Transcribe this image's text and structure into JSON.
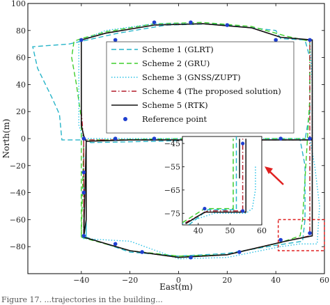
{
  "caption": "Figure 17. ...trajectories in the building...",
  "chart_data": {
    "type": "line",
    "xlabel": "East(m)",
    "ylabel": "North(m)",
    "xlim": [
      -62,
      60
    ],
    "ylim": [
      -100,
      100
    ],
    "xticks": [
      -40,
      -20,
      0,
      20,
      40,
      60
    ],
    "yticks": [
      -80,
      -60,
      -40,
      -20,
      0,
      20,
      40,
      60,
      80,
      100
    ],
    "legend_position": "upper-center",
    "series": [
      {
        "name": "Scheme 1 (GLRT)",
        "color": "#26b4c8",
        "dash": "dashed",
        "points": [
          [
            -38,
            -73
          ],
          [
            -38,
            -2
          ],
          [
            -36,
            -3
          ],
          [
            -10,
            -2
          ],
          [
            10,
            -1
          ],
          [
            50,
            -1
          ],
          [
            52,
            -20
          ],
          [
            52,
            -60
          ],
          [
            51,
            -76
          ],
          [
            40,
            -79
          ],
          [
            20,
            -85
          ],
          [
            0,
            -87
          ],
          [
            -20,
            -84
          ],
          [
            -38,
            -73
          ],
          [
            -38,
            -1
          ],
          [
            -48,
            -1
          ],
          [
            -49,
            18
          ],
          [
            -52,
            30
          ],
          [
            -58,
            52
          ],
          [
            -60,
            68
          ],
          [
            -45,
            70
          ],
          [
            -40,
            72
          ],
          [
            -25,
            78
          ],
          [
            -5,
            84
          ],
          [
            15,
            85
          ],
          [
            30,
            82
          ],
          [
            40,
            80
          ],
          [
            42,
            74
          ],
          [
            52,
            73
          ],
          [
            54,
            60
          ],
          [
            54,
            20
          ],
          [
            52,
            -1
          ]
        ]
      },
      {
        "name": "Scheme 2 (GRU)",
        "color": "#3fce2c",
        "dash": "dashed",
        "points": [
          [
            -40,
            -73
          ],
          [
            -40,
            -40
          ],
          [
            -40,
            -5
          ],
          [
            -40,
            15
          ],
          [
            -42,
            40
          ],
          [
            -44,
            60
          ],
          [
            -43,
            72
          ],
          [
            -40,
            74
          ],
          [
            -30,
            79
          ],
          [
            -10,
            85
          ],
          [
            10,
            86
          ],
          [
            30,
            83
          ],
          [
            44,
            76
          ],
          [
            54,
            72
          ],
          [
            54,
            30
          ],
          [
            53,
            0
          ],
          [
            52,
            -30
          ],
          [
            51,
            -60
          ],
          [
            50,
            -72
          ],
          [
            42,
            -77
          ],
          [
            20,
            -86
          ],
          [
            0,
            -87
          ],
          [
            -20,
            -83
          ],
          [
            -38,
            -74
          ],
          [
            -40,
            -73
          ],
          [
            -39,
            -1
          ],
          [
            -30,
            -1
          ],
          [
            0,
            0
          ],
          [
            30,
            0
          ],
          [
            52,
            0
          ]
        ]
      },
      {
        "name": "Scheme 3 (GNSS/ZUPT)",
        "color": "#2cc2e6",
        "dash": "dotted",
        "points": [
          [
            -39,
            -74
          ],
          [
            -39,
            -1
          ],
          [
            -38,
            0
          ],
          [
            0,
            0
          ],
          [
            40,
            0
          ],
          [
            54,
            0
          ],
          [
            56,
            -20
          ],
          [
            58,
            -50
          ],
          [
            57,
            -78
          ],
          [
            50,
            -78
          ],
          [
            42,
            -80
          ],
          [
            20,
            -88
          ],
          [
            0,
            -89
          ],
          [
            -20,
            -76
          ],
          [
            -30,
            -75
          ],
          [
            -39,
            -74
          ],
          [
            -39,
            -1
          ],
          [
            -41,
            10
          ],
          [
            -41,
            30
          ],
          [
            -41,
            50
          ],
          [
            -41,
            72
          ],
          [
            -30,
            80
          ],
          [
            -10,
            85
          ],
          [
            10,
            85
          ],
          [
            30,
            82
          ],
          [
            42,
            75
          ],
          [
            54,
            73
          ],
          [
            55,
            40
          ],
          [
            55,
            0
          ]
        ]
      },
      {
        "name": "Scheme 4 (The proposed solution)",
        "color": "#b41c2a",
        "dash": "dashdot",
        "points": [
          [
            -39,
            -73
          ],
          [
            -39,
            -40
          ],
          [
            -39,
            -3
          ],
          [
            -40,
            20
          ],
          [
            -40,
            50
          ],
          [
            -40,
            73
          ],
          [
            -30,
            78
          ],
          [
            -10,
            84
          ],
          [
            10,
            85
          ],
          [
            30,
            82
          ],
          [
            42,
            75
          ],
          [
            54,
            73
          ],
          [
            54,
            40
          ],
          [
            54,
            0
          ],
          [
            54,
            -40
          ],
          [
            54,
            -72
          ],
          [
            44,
            -76
          ],
          [
            20,
            -86
          ],
          [
            0,
            -88
          ],
          [
            -20,
            -83
          ],
          [
            -39,
            -73
          ],
          [
            -39,
            -1
          ],
          [
            -20,
            -1
          ],
          [
            0,
            -1
          ],
          [
            30,
            -1
          ],
          [
            54,
            -1
          ]
        ]
      },
      {
        "name": "Scheme 5 (RTK)",
        "color": "#111111",
        "dash": "solid",
        "points": [
          [
            -39,
            -73
          ],
          [
            -38,
            -60
          ],
          [
            -38,
            -40
          ],
          [
            -38,
            -20
          ],
          [
            -38,
            -2
          ],
          [
            -39,
            2
          ],
          [
            -40,
            10
          ],
          [
            -40,
            30
          ],
          [
            -40,
            50
          ],
          [
            -40,
            73
          ],
          [
            -30,
            78
          ],
          [
            -10,
            84
          ],
          [
            10,
            85
          ],
          [
            30,
            82
          ],
          [
            42,
            75
          ],
          [
            55,
            73
          ],
          [
            55,
            40
          ],
          [
            55,
            0
          ],
          [
            55,
            -40
          ],
          [
            55,
            -72
          ],
          [
            44,
            -76
          ],
          [
            20,
            -86
          ],
          [
            0,
            -88
          ],
          [
            -20,
            -83
          ],
          [
            -39,
            -73
          ],
          [
            -38,
            -2
          ],
          [
            -20,
            -1
          ],
          [
            0,
            -1
          ],
          [
            30,
            -1
          ],
          [
            55,
            -1
          ]
        ]
      }
    ],
    "reference_points": {
      "name": "Reference point",
      "color": "#1f3fcf",
      "points": [
        [
          -40,
          73
        ],
        [
          -26,
          73
        ],
        [
          -10,
          86
        ],
        [
          5,
          86
        ],
        [
          20,
          84
        ],
        [
          40,
          73
        ],
        [
          54,
          73
        ],
        [
          54,
          0
        ],
        [
          54,
          -70
        ],
        [
          42,
          -75
        ],
        [
          25,
          -84
        ],
        [
          5,
          -88
        ],
        [
          -15,
          -84
        ],
        [
          -26,
          -78
        ],
        [
          -39,
          -72
        ],
        [
          -39,
          -40
        ],
        [
          -39,
          -25
        ],
        [
          -39,
          0
        ],
        [
          -26,
          0
        ],
        [
          -10,
          0
        ],
        [
          10,
          0
        ],
        [
          30,
          0
        ],
        [
          42,
          0
        ]
      ]
    },
    "inset": {
      "xlim": [
        35,
        60
      ],
      "ylim": [
        -80,
        -42
      ],
      "xticks": [
        40,
        50,
        60
      ],
      "yticks": [
        -45,
        -55,
        -65,
        -75
      ],
      "highlight_box": {
        "x": [
          41,
          60
        ],
        "y": [
          -83,
          -60
        ]
      }
    }
  }
}
